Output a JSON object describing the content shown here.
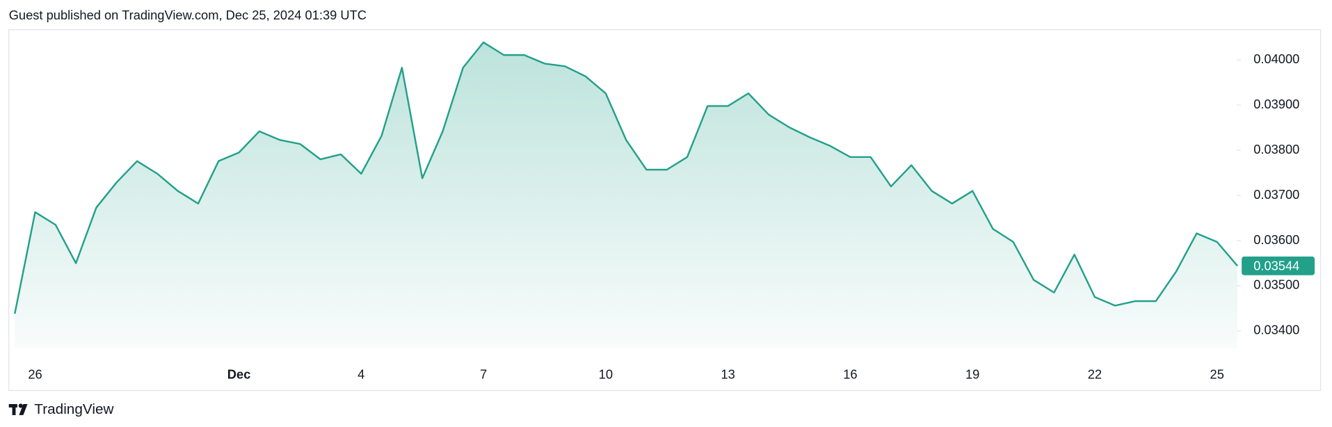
{
  "header": {
    "text": "Guest published on TradingView.com, Dec 25, 2024 01:39 UTC"
  },
  "footer": {
    "brand": "TradingView"
  },
  "chart_data": {
    "type": "area",
    "categories": [
      null,
      "26",
      null,
      null,
      null,
      null,
      null,
      null,
      null,
      null,
      null,
      "Dec",
      null,
      null,
      null,
      null,
      null,
      "4",
      null,
      null,
      null,
      null,
      null,
      "7",
      null,
      null,
      null,
      null,
      null,
      "10",
      null,
      null,
      null,
      null,
      null,
      "13",
      null,
      null,
      null,
      null,
      null,
      "16",
      null,
      null,
      null,
      null,
      null,
      "19",
      null,
      null,
      null,
      null,
      null,
      "22",
      null,
      null,
      null,
      null,
      null,
      "25",
      null
    ],
    "values": [
      0.03438,
      0.03663,
      0.03635,
      0.0355,
      0.03673,
      0.03729,
      0.03776,
      0.03748,
      0.0371,
      0.03682,
      0.03776,
      0.03795,
      0.03842,
      0.03823,
      0.03814,
      0.0378,
      0.03791,
      0.03748,
      0.03832,
      0.03983,
      0.03738,
      0.03842,
      0.03983,
      0.04039,
      0.04011,
      0.04011,
      0.03992,
      0.03986,
      0.03964,
      0.03926,
      0.03823,
      0.03757,
      0.03757,
      0.03785,
      0.03898,
      0.03898,
      0.03926,
      0.03879,
      0.03851,
      0.03829,
      0.0381,
      0.03785,
      0.03785,
      0.0372,
      0.03767,
      0.0371,
      0.03682,
      0.0371,
      0.03626,
      0.03597,
      0.03513,
      0.03485,
      0.03569,
      0.03475,
      0.03456,
      0.03466,
      0.03466,
      0.03532,
      0.03616,
      0.03597,
      0.03544
    ],
    "color": "#22a08a",
    "ylim": [
      0.03362,
      0.04067
    ],
    "yticks": [
      {
        "value": 0.034,
        "label": "0.03400"
      },
      {
        "value": 0.035,
        "label": "0.03500"
      },
      {
        "value": 0.036,
        "label": "0.03600"
      },
      {
        "value": 0.037,
        "label": "0.03700"
      },
      {
        "value": 0.038,
        "label": "0.03800"
      },
      {
        "value": 0.039,
        "label": "0.03900"
      },
      {
        "value": 0.04,
        "label": "0.04000"
      }
    ],
    "grid": false
  }
}
